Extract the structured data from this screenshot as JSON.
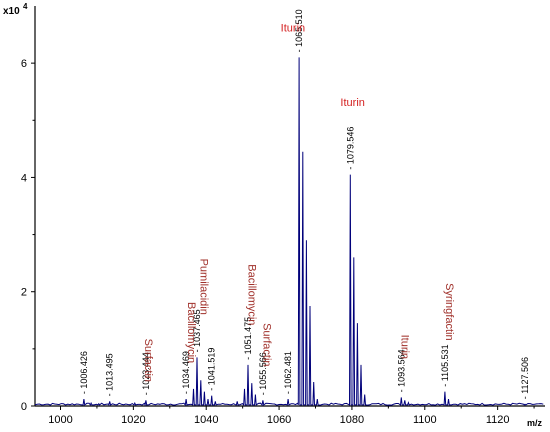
{
  "chart_data": {
    "type": "line",
    "title": "",
    "xlabel": "m/z",
    "ylabel": "",
    "y_scale_label": "x10",
    "y_scale_exponent": "4",
    "xlim": [
      993,
      1133
    ],
    "ylim": [
      0,
      7
    ],
    "x_ticks": [
      1000,
      1020,
      1040,
      1060,
      1080,
      1100,
      1120
    ],
    "x_tick_labels": [
      "1000",
      "1020",
      "1040",
      "1060",
      "1080",
      "1100",
      "1120"
    ],
    "y_ticks": [
      0,
      2,
      4,
      6
    ],
    "y_tick_labels": [
      "0",
      "2",
      "4",
      "6"
    ],
    "line_color": "#00007a",
    "compound_label_color": "#a0302a",
    "highlight_label_color": "#d42020",
    "peaks": [
      {
        "x": 1006.426,
        "y": 0.12,
        "label": "1006.426"
      },
      {
        "x": 1013.495,
        "y": 0.08,
        "label": "1013.495"
      },
      {
        "x": 1023.444,
        "y": 0.1,
        "label": "1023.444"
      },
      {
        "x": 1034.469,
        "y": 0.12,
        "label": "1034.469"
      },
      {
        "x": 1037.465,
        "y": 0.85,
        "label": "1037.465"
      },
      {
        "x": 1041.519,
        "y": 0.18,
        "label": "1041.519"
      },
      {
        "x": 1051.475,
        "y": 0.72,
        "label": "1051.475"
      },
      {
        "x": 1055.566,
        "y": 0.1,
        "label": "1055.566"
      },
      {
        "x": 1062.481,
        "y": 0.12,
        "label": "1062.481"
      },
      {
        "x": 1065.51,
        "y": 6.1,
        "label": "1065.510"
      },
      {
        "x": 1079.546,
        "y": 4.05,
        "label": "1079.546"
      },
      {
        "x": 1093.564,
        "y": 0.15,
        "label": "1093.564"
      },
      {
        "x": 1105.531,
        "y": 0.25,
        "label": "1105.531"
      },
      {
        "x": 1127.506,
        "y": 0.03,
        "label": "1127.506"
      }
    ],
    "minor_peaks": [
      {
        "x": 1008.4,
        "y": 0.05
      },
      {
        "x": 1010.5,
        "y": 0.04
      },
      {
        "x": 1020.4,
        "y": 0.05
      },
      {
        "x": 1036.5,
        "y": 0.3
      },
      {
        "x": 1038.5,
        "y": 0.45
      },
      {
        "x": 1039.5,
        "y": 0.25
      },
      {
        "x": 1040.5,
        "y": 0.12
      },
      {
        "x": 1042.5,
        "y": 0.08
      },
      {
        "x": 1048.5,
        "y": 0.08
      },
      {
        "x": 1050.5,
        "y": 0.3
      },
      {
        "x": 1052.5,
        "y": 0.4
      },
      {
        "x": 1053.5,
        "y": 0.2
      },
      {
        "x": 1066.5,
        "y": 4.45
      },
      {
        "x": 1067.5,
        "y": 2.9
      },
      {
        "x": 1068.5,
        "y": 1.75
      },
      {
        "x": 1069.5,
        "y": 0.42
      },
      {
        "x": 1070.5,
        "y": 0.12
      },
      {
        "x": 1080.5,
        "y": 2.6
      },
      {
        "x": 1081.5,
        "y": 1.45
      },
      {
        "x": 1082.5,
        "y": 0.72
      },
      {
        "x": 1083.5,
        "y": 0.2
      },
      {
        "x": 1094.5,
        "y": 0.1
      },
      {
        "x": 1095.5,
        "y": 0.06
      },
      {
        "x": 1106.5,
        "y": 0.12
      }
    ],
    "compound_labels": [
      {
        "text": "Iturin",
        "x": 1063.8,
        "y": 6.55,
        "orientation": "horizontal",
        "highlight": true
      },
      {
        "text": "Iturin",
        "x": 1080.2,
        "y": 5.25,
        "orientation": "horizontal",
        "highlight": true
      },
      {
        "text": "Surfactin",
        "x": 1023.2,
        "y": 1.18,
        "orientation": "vertical",
        "highlight": false
      },
      {
        "text": "Bacillomycin",
        "x": 1035.0,
        "y": 1.82,
        "orientation": "vertical",
        "highlight": false
      },
      {
        "text": "Pumilacidin",
        "x": 1038.4,
        "y": 2.58,
        "orientation": "vertical",
        "highlight": false
      },
      {
        "text": "Bacillomycin",
        "x": 1051.6,
        "y": 2.48,
        "orientation": "vertical",
        "highlight": false
      },
      {
        "text": "Surfactin",
        "x": 1055.7,
        "y": 1.45,
        "orientation": "vertical",
        "highlight": false
      },
      {
        "text": "Iturin",
        "x": 1093.6,
        "y": 1.25,
        "orientation": "vertical",
        "highlight": false
      },
      {
        "text": "Syringfactin",
        "x": 1105.8,
        "y": 2.15,
        "orientation": "vertical",
        "highlight": false
      }
    ]
  }
}
